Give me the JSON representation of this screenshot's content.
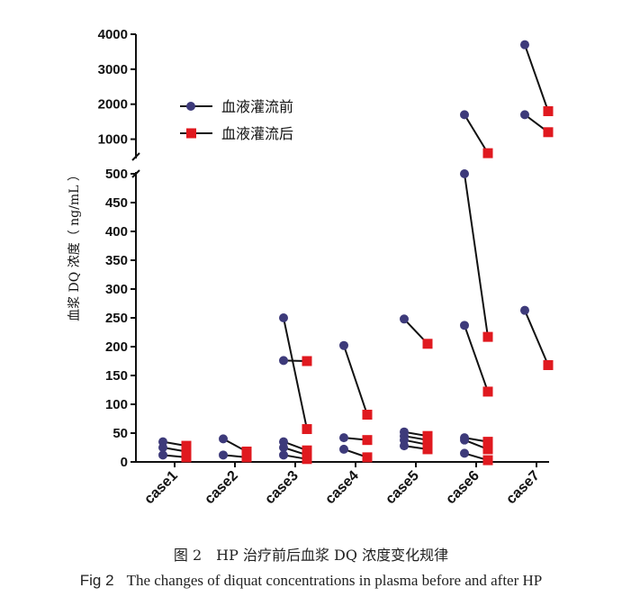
{
  "chart_data": {
    "type": "scatter",
    "ylabel": "血浆 DQ 浓度（ ng/mL ）",
    "y_axis": {
      "broken": true,
      "lower_range": [
        0,
        500
      ],
      "lower_ticks": [
        "0",
        "50",
        "100",
        "150",
        "200",
        "250",
        "300",
        "350",
        "400",
        "450",
        "500"
      ],
      "upper_range": [
        500,
        4000
      ],
      "upper_ticks": [
        "1000",
        "2000",
        "3000",
        "4000"
      ]
    },
    "categories": [
      "case1",
      "case2",
      "case3",
      "case4",
      "case5",
      "case6",
      "case7"
    ],
    "legend": {
      "placement": "top-left",
      "items": [
        {
          "label": "血液灌流前",
          "color": "#3d3a7a",
          "marker": "circle"
        },
        {
          "label": "血液灌流后",
          "color": "#e0191f",
          "marker": "square"
        }
      ]
    },
    "pairs": [
      {
        "case": "case1",
        "before": 35,
        "after": 28
      },
      {
        "case": "case1",
        "before": 25,
        "after": 18
      },
      {
        "case": "case1",
        "before": 12,
        "after": 8
      },
      {
        "case": "case2",
        "before": 40,
        "after": 18
      },
      {
        "case": "case2",
        "before": 12,
        "after": 8
      },
      {
        "case": "case3",
        "before": 250,
        "after": 57
      },
      {
        "case": "case3",
        "before": 176,
        "after": 175
      },
      {
        "case": "case3",
        "before": 35,
        "after": 20
      },
      {
        "case": "case3",
        "before": 25,
        "after": 12
      },
      {
        "case": "case3",
        "before": 12,
        "after": 5
      },
      {
        "case": "case4",
        "before": 202,
        "after": 82
      },
      {
        "case": "case4",
        "before": 42,
        "after": 38
      },
      {
        "case": "case4",
        "before": 22,
        "after": 8
      },
      {
        "case": "case5",
        "before": 248,
        "after": 205
      },
      {
        "case": "case5",
        "before": 52,
        "after": 45
      },
      {
        "case": "case5",
        "before": 45,
        "after": 38
      },
      {
        "case": "case5",
        "before": 38,
        "after": 30
      },
      {
        "case": "case5",
        "before": 28,
        "after": 22
      },
      {
        "case": "case6",
        "before": 1700,
        "after": 600
      },
      {
        "case": "case6",
        "before": 500,
        "after": 217
      },
      {
        "case": "case6",
        "before": 237,
        "after": 122
      },
      {
        "case": "case6",
        "before": 42,
        "after": 35
      },
      {
        "case": "case6",
        "before": 38,
        "after": 22
      },
      {
        "case": "case6",
        "before": 15,
        "after": 3
      },
      {
        "case": "case7",
        "before": 3700,
        "after": 1800
      },
      {
        "case": "case7",
        "before": 1700,
        "after": 1200
      },
      {
        "case": "case7",
        "before": 263,
        "after": 168
      }
    ]
  },
  "captions": {
    "zh": "图 2　HP 治疗前后血浆 DQ 浓度变化规律",
    "en_label": "Fig 2",
    "en_text": "The changes of diquat concentrations in plasma before and after HP"
  },
  "colors": {
    "before": "#3d3a7a",
    "after": "#e0191f",
    "axis": "#111111"
  }
}
